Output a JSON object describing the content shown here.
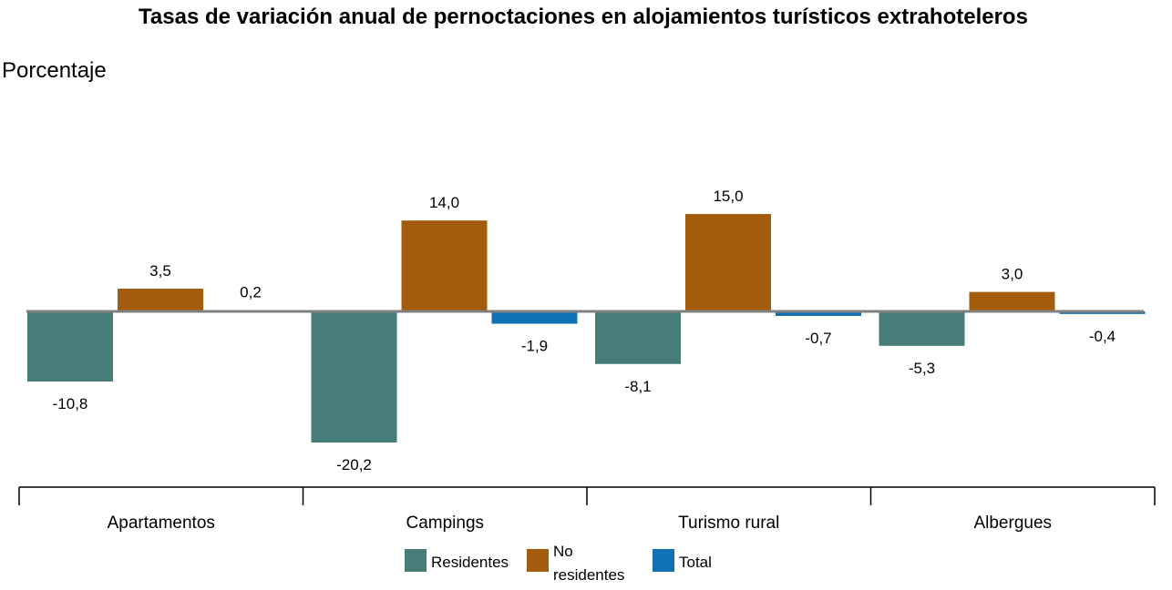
{
  "chart_data": {
    "type": "bar",
    "title": "Tasas de variación anual de pernoctaciones en alojamientos turísticos extrahoteleros",
    "ylabel": "Porcentaje",
    "xlabel": "",
    "categories": [
      "Apartamentos",
      "Campings",
      "Turismo rural",
      "Albergues"
    ],
    "series": [
      {
        "name": "Residentes",
        "color": "#467d78",
        "values": [
          -10.8,
          -20.2,
          -8.1,
          -5.3
        ],
        "labels": [
          "-10,8",
          "-20,2",
          "-8,1",
          "-5,3"
        ]
      },
      {
        "name": "No residentes",
        "legend_lines": [
          "No",
          "residentes"
        ],
        "color": "#a35c0c",
        "values": [
          3.5,
          14.0,
          15.0,
          3.0
        ],
        "labels": [
          "3,5",
          "14,0",
          "15,0",
          "3,0"
        ]
      },
      {
        "name": "Total",
        "color": "#0f72b4",
        "values": [
          0.2,
          -1.9,
          -0.7,
          -0.4
        ],
        "labels": [
          "0,2",
          "-1,9",
          "-0,7",
          "-0,4"
        ]
      }
    ],
    "ylim": [
      -24,
      22
    ],
    "grid": false,
    "legend_position": "bottom"
  }
}
